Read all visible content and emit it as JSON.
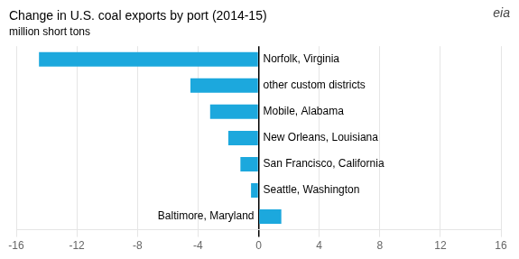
{
  "chart_data": {
    "type": "bar",
    "orientation": "horizontal",
    "title": "Change in U.S. coal exports by port (2014-15)",
    "subtitle": "million short tons",
    "annotations": [
      "eia"
    ],
    "categories": [
      "Baltimore, Maryland",
      "Seattle, Washington",
      "San Francisco, California",
      "New Orleans, Louisiana",
      "Mobile, Alabama",
      "other custom districts",
      "Norfolk, Virginia"
    ],
    "values": [
      1.5,
      -0.5,
      -1.2,
      -2.0,
      -3.2,
      -4.5,
      -14.5
    ],
    "color": "#1ca8dd",
    "xlim": [
      -16,
      16
    ],
    "xticks": [
      -16,
      -12,
      -8,
      -4,
      0,
      4,
      8,
      12,
      16
    ],
    "grid": true,
    "tick_labels": "x"
  }
}
